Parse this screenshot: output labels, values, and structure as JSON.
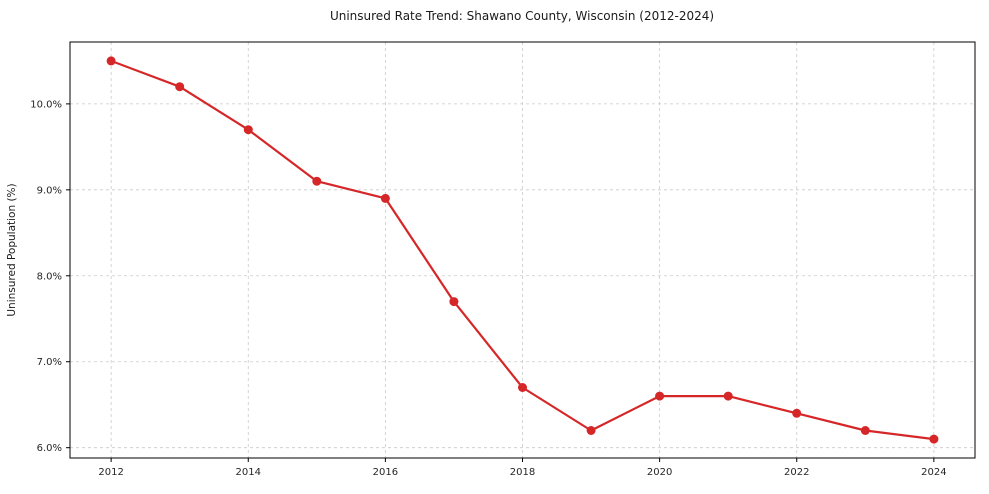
{
  "chart_data": {
    "type": "line",
    "title": "Uninsured Rate Trend: Shawano County, Wisconsin (2012-2024)",
    "xlabel": "",
    "ylabel": "Uninsured Population (%)",
    "x": [
      2012,
      2013,
      2014,
      2015,
      2016,
      2017,
      2018,
      2019,
      2020,
      2021,
      2022,
      2023,
      2024
    ],
    "values": [
      10.5,
      10.2,
      9.7,
      9.1,
      8.9,
      7.7,
      6.7,
      6.2,
      6.6,
      6.6,
      6.4,
      6.2,
      6.1
    ],
    "series_name": "Uninsured Population (%)",
    "xlim": [
      2011.4,
      2024.6
    ],
    "ylim": [
      5.88,
      10.72
    ],
    "xticks": [
      2012,
      2014,
      2016,
      2018,
      2020,
      2022,
      2024
    ],
    "yticks": [
      6.0,
      7.0,
      8.0,
      9.0,
      10.0
    ],
    "ytick_labels": [
      "6.0%",
      "7.0%",
      "8.0%",
      "9.0%",
      "10.0%"
    ],
    "grid": true,
    "grid_style": "dashed",
    "legend": "none",
    "colors": {
      "line": "#d62728",
      "grid": "#c9c9c9",
      "spine": "#000000",
      "background": "#ffffff"
    },
    "marker": "circle",
    "marker_size": 4.5,
    "line_width": 2.2
  }
}
